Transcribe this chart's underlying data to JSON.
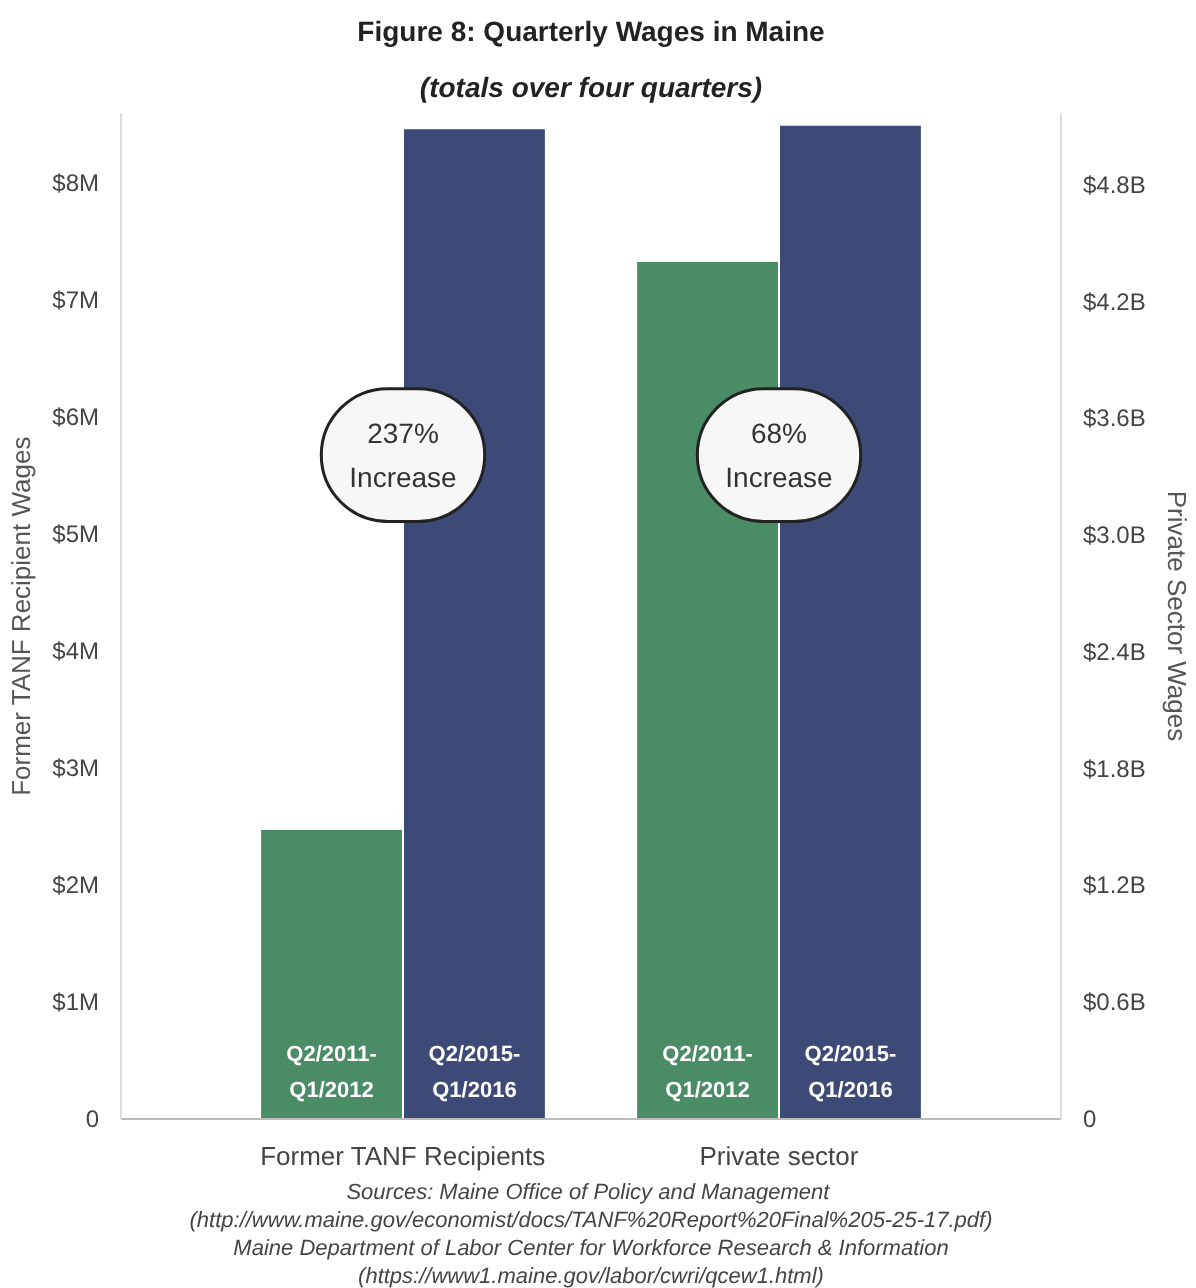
{
  "chart_data": {
    "type": "bar",
    "title": "Figure 8: Quarterly Wages in Maine",
    "subtitle": "(totals over four quarters)",
    "ylabel": "Former TANF Recipient Wages",
    "y2label": "Private Sector Wages",
    "categories": [
      "Former TANF Recipients",
      "Private sector"
    ],
    "series": [
      {
        "name": "Q2/2011-Q1/2012",
        "color": "#4a8c66",
        "values": [
          2480000,
          null
        ]
      },
      {
        "name": "Q2/2015-Q1/2016",
        "color": "#3d4a78",
        "values": [
          8470000,
          null
        ]
      },
      {
        "name": "Q2/2011-Q1/2012",
        "color": "#4a8c66",
        "values": [
          null,
          4410000000
        ],
        "axis": "y2"
      },
      {
        "name": "Q2/2015-Q1/2016",
        "color": "#3d4a78",
        "values": [
          null,
          5110000000
        ],
        "axis": "y2"
      }
    ],
    "ylim": [
      0,
      8600000
    ],
    "yticks": [
      {
        "value": 0,
        "label": "0"
      },
      {
        "value": 1000000,
        "label": "$1M"
      },
      {
        "value": 2000000,
        "label": "$2M"
      },
      {
        "value": 3000000,
        "label": "$3M"
      },
      {
        "value": 4000000,
        "label": "$4M"
      },
      {
        "value": 5000000,
        "label": "$5M"
      },
      {
        "value": 6000000,
        "label": "$6M"
      },
      {
        "value": 7000000,
        "label": "$7M"
      },
      {
        "value": 8000000,
        "label": "$8M"
      }
    ],
    "y2lim": [
      0,
      5170000000
    ],
    "y2ticks": [
      {
        "value": 0,
        "label": "0"
      },
      {
        "value": 600000000,
        "label": "$0.6B"
      },
      {
        "value": 1200000000,
        "label": "$1.2B"
      },
      {
        "value": 1800000000,
        "label": "$1.8B"
      },
      {
        "value": 2400000000,
        "label": "$2.4B"
      },
      {
        "value": 3000000000,
        "label": "$3.0B"
      },
      {
        "value": 3600000000,
        "label": "$3.6B"
      },
      {
        "value": 4200000000,
        "label": "$4.2B"
      },
      {
        "value": 4800000000,
        "label": "$4.8B"
      }
    ],
    "annotations": [
      "237% Increase",
      "68% Increase",
      "Sources:  Maine Office of Policy and Management",
      "(http://www.maine.gov/economist/docs/TANF%20Report%20Final%205-25-17.pdf)",
      "Maine Department of Labor Center for Workforce Research & Information",
      "(https://www1.maine.gov/labor/cwri/qcew1.html)"
    ],
    "grid": false
  }
}
